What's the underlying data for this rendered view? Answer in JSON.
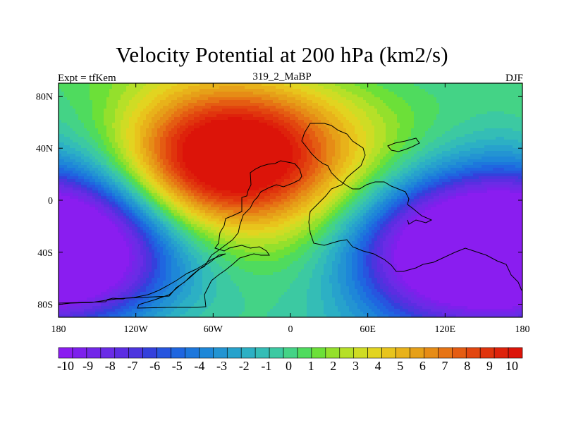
{
  "chart_data": {
    "type": "heatmap",
    "title": "Velocity Potential at 200 hPa (km2/s)",
    "left_string": "Expt = tfKem",
    "center_string": "319_2_MaBP",
    "right_string": "DJF",
    "x_ticks": [
      "180",
      "120W",
      "60W",
      "0",
      "60E",
      "120E",
      "180"
    ],
    "y_ticks": [
      "80N",
      "40N",
      "0",
      "40S",
      "80S"
    ],
    "x_range": [
      -180,
      180
    ],
    "y_range": [
      -90,
      90
    ],
    "colorbar": {
      "labels": [
        "-10",
        "-9",
        "-8",
        "-7",
        "-6",
        "-5",
        "-4",
        "-3",
        "-2",
        "-1",
        "0",
        "1",
        "2",
        "3",
        "4",
        "5",
        "6",
        "7",
        "8",
        "9",
        "10"
      ],
      "min": -10.5,
      "max": 10.5,
      "colors": [
        "#8a1df0",
        "#7d20ec",
        "#7227e8",
        "#6a2ce6",
        "#5c2de2",
        "#4c35de",
        "#3440dc",
        "#2755df",
        "#1f66e0",
        "#1d77dc",
        "#1e87d8",
        "#2394d2",
        "#27a2cc",
        "#2cb0c4",
        "#34bdb6",
        "#3cc9a2",
        "#44d386",
        "#4fdb5e",
        "#6ce038",
        "#94e02c",
        "#b6e028",
        "#cfdc24",
        "#e2d420",
        "#e8c41c",
        "#e8b21a",
        "#e6a018",
        "#e68c16",
        "#e67414",
        "#e45c12",
        "#e2460f",
        "#e0340d",
        "#de220b",
        "#dc1409"
      ]
    },
    "field_description": "large-scale velocity potential anomaly; maximum (~ +10) over 60W 25N, minimum (~ -10) over 110E 30S and far west Pacific south",
    "centers": [
      {
        "lon": -70,
        "lat": 28,
        "amp": 10.5
      },
      {
        "lon": -15,
        "lat": 42,
        "amp": 5
      },
      {
        "lon": 110,
        "lat": -38,
        "amp": -11
      },
      {
        "lon": -165,
        "lat": -40,
        "amp": -8
      },
      {
        "lon": 170,
        "lat": -35,
        "amp": -5
      }
    ]
  }
}
